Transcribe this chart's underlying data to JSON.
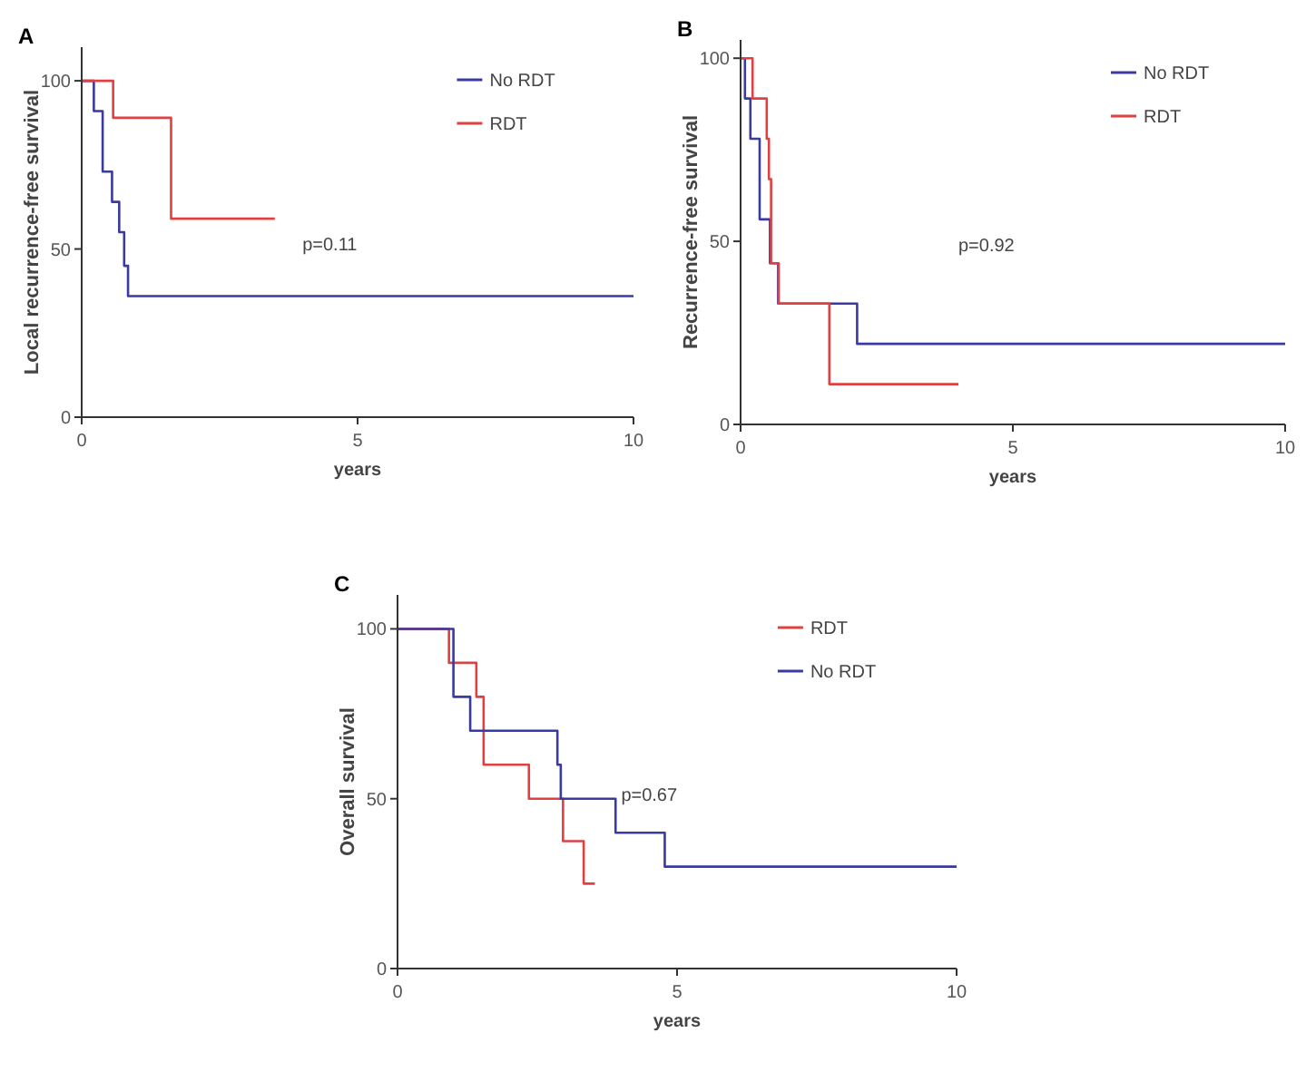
{
  "chart_data": [
    {
      "type": "step",
      "title": "A",
      "xlabel": "years",
      "ylabel": "Local recurrence-free survival",
      "xlim": [
        0,
        10
      ],
      "xticks": [
        0,
        5,
        10
      ],
      "ylim": [
        0,
        110
      ],
      "yticks": [
        0,
        50,
        100
      ],
      "legend": "top right",
      "annotations": [
        "p=0.11"
      ],
      "series": [
        {
          "name": "No RDT",
          "color": "#3a3aa0",
          "x": [
            0,
            0.22,
            0.38,
            0.55,
            0.68,
            0.77,
            0.84,
            10
          ],
          "values": [
            100,
            91,
            73,
            64,
            55,
            45,
            36,
            36
          ]
        },
        {
          "name": "RDT",
          "color": "#e04040",
          "x": [
            0,
            0.57,
            1.62,
            3.5
          ],
          "values": [
            100,
            89,
            59,
            59
          ]
        }
      ]
    },
    {
      "type": "step",
      "title": "B",
      "xlabel": "years",
      "ylabel": "Recurrence-free survival",
      "xlim": [
        0,
        10
      ],
      "xticks": [
        0,
        5,
        10
      ],
      "ylim": [
        0,
        105
      ],
      "yticks": [
        0,
        50,
        100
      ],
      "legend": "top right",
      "annotations": [
        "p=0.92"
      ],
      "series": [
        {
          "name": "No RDT",
          "color": "#3a3aa0",
          "x": [
            0,
            0.08,
            0.18,
            0.35,
            0.54,
            0.69,
            2.14,
            10
          ],
          "values": [
            100,
            89,
            78,
            56,
            44,
            33,
            22,
            22
          ]
        },
        {
          "name": "RDT",
          "color": "#e04040",
          "x": [
            0,
            0.22,
            0.48,
            0.52,
            0.56,
            0.7,
            1.63,
            4
          ],
          "values": [
            100,
            89,
            78,
            67,
            44,
            33,
            11,
            11
          ]
        }
      ]
    },
    {
      "type": "step",
      "title": "C",
      "xlabel": "years",
      "ylabel": "Overall survival",
      "xlim": [
        0,
        10
      ],
      "xticks": [
        0,
        5,
        10
      ],
      "ylim": [
        0,
        110
      ],
      "yticks": [
        0,
        50,
        100
      ],
      "legend": "top right",
      "annotations": [
        "p=0.67"
      ],
      "series": [
        {
          "name": "RDT",
          "color": "#e04040",
          "x": [
            0,
            0.92,
            1.41,
            1.54,
            2.35,
            2.96,
            3.33,
            3.53
          ],
          "values": [
            100,
            90,
            80,
            60,
            50,
            37.5,
            25,
            25
          ]
        },
        {
          "name": "No RDT",
          "color": "#3a3aa0",
          "x": [
            0,
            1,
            1.3,
            2.86,
            2.92,
            3.9,
            4.78,
            10
          ],
          "values": [
            100,
            80,
            70,
            60,
            50,
            40,
            30,
            30
          ]
        }
      ]
    }
  ]
}
